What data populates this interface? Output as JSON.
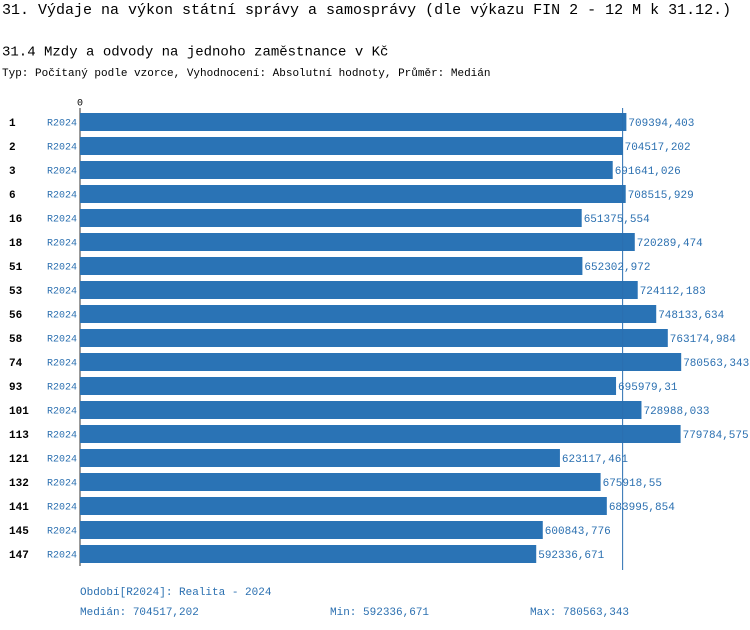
{
  "chart_data": {
    "type": "barh",
    "title": "31. Výdaje na výkon státní správy a samosprávy (dle výkazu FIN 2 - 12 M k 31.12.)",
    "subtitle": "31.4 Mzdy a odvody na jednoho zaměstnance v Kč",
    "note": "Typ: Počítaný podle vzorce, Vyhodnocení: Absolutní hodnoty, Průměr: Medián",
    "categories": [
      "1",
      "2",
      "3",
      "6",
      "16",
      "18",
      "51",
      "53",
      "56",
      "58",
      "74",
      "93",
      "101",
      "113",
      "121",
      "132",
      "141",
      "145",
      "147"
    ],
    "series": [
      {
        "name": "R2024",
        "color": "#2a73b5",
        "values": [
          709394.403,
          704517.202,
          691641.026,
          708515.929,
          651375.554,
          720289.474,
          652302.972,
          724112.183,
          748133.634,
          763174.984,
          780563.343,
          695979.31,
          728988.033,
          779784.575,
          623117.461,
          675918.55,
          683995.854,
          600843.776,
          592336.671
        ],
        "value_labels": [
          "709394,403",
          "704517,202",
          "691641,026",
          "708515,929",
          "651375,554",
          "720289,474",
          "652302,972",
          "724112,183",
          "748133,634",
          "763174,984",
          "780563,343",
          "695979,31",
          "728988,033",
          "779784,575",
          "623117,461",
          "675918,55",
          "683995,854",
          "600843,776",
          "592336,671"
        ]
      }
    ],
    "xlim": [
      0,
      866000
    ],
    "xticks": [
      0
    ],
    "period": "Období[R2024]: Realita - 2024",
    "median": {
      "label": "Medián:",
      "value": 704517.202,
      "value_label": "704517,202"
    },
    "min": {
      "label": "Min:",
      "value": 592336.671,
      "value_label": "592336,671"
    },
    "max": {
      "label": "Max:",
      "value": 780563.343,
      "value_label": "780563,343"
    }
  }
}
